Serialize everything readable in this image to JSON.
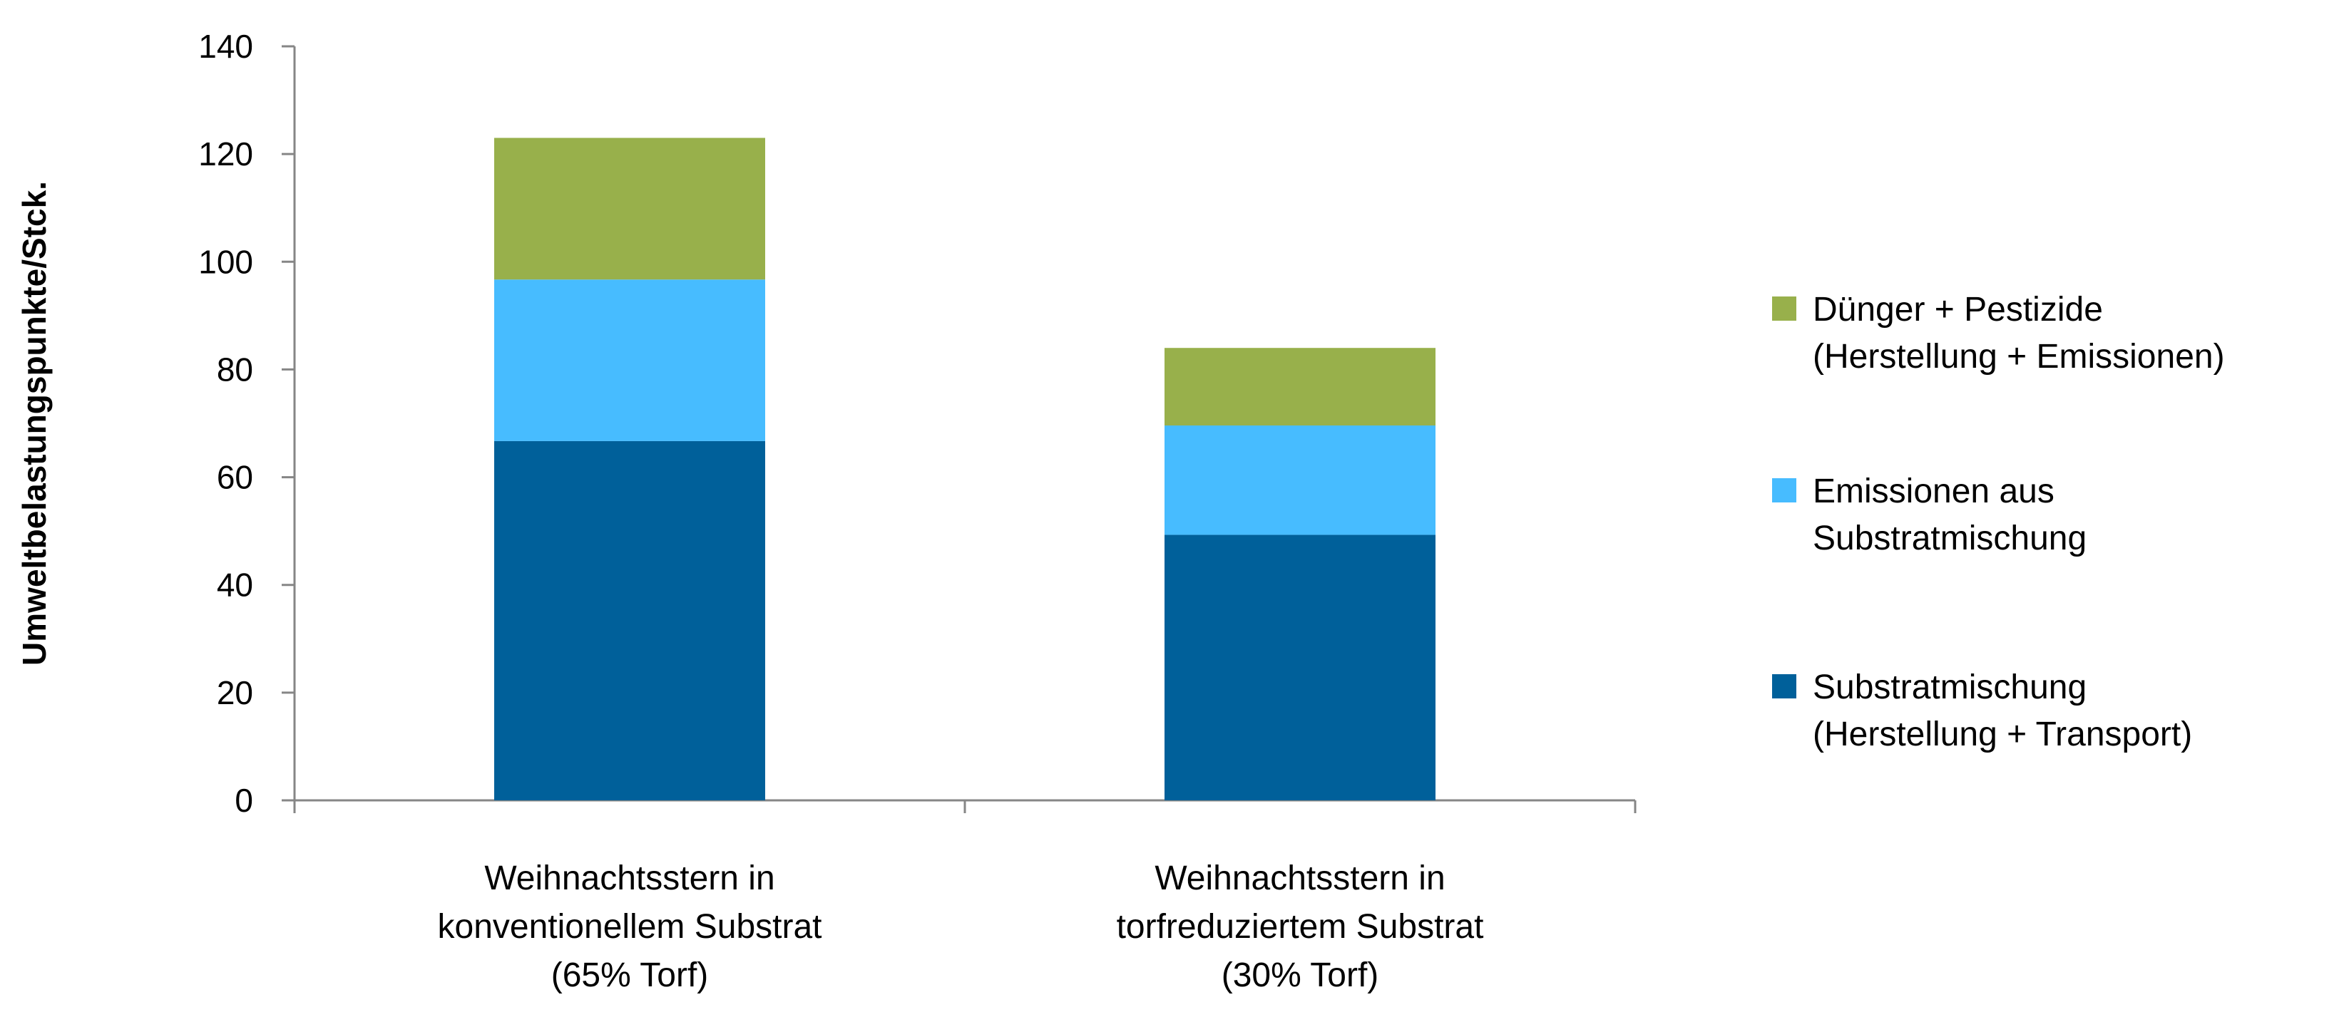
{
  "chart_data": {
    "type": "bar",
    "stacked": true,
    "title": "",
    "xlabel": "",
    "ylabel": "Umweltbelastungspunkte/Stck.",
    "ylim": [
      0,
      140
    ],
    "yticks": [
      "0",
      "20",
      "40",
      "60",
      "80",
      "100",
      "120",
      "140"
    ],
    "grid": false,
    "legend_position": "right",
    "categories": [
      [
        "Weihnachtsstern in",
        "konventionellem Substrat",
        "(65% Torf)"
      ],
      [
        "Weihnachtsstern in",
        "torfreduziertem Substrat",
        "(30% Torf)"
      ]
    ],
    "series": [
      {
        "name": "Substratmischung (Herstellung + Transport)",
        "legend_lines": [
          "Substratmischung",
          "(Herstellung + Transport)"
        ],
        "color": "#00609A",
        "values": [
          66.7,
          49.3
        ]
      },
      {
        "name": "Emissionen aus Substratmischung",
        "legend_lines": [
          "Emissionen aus",
          "Substratmischung"
        ],
        "color": "#47BCFF",
        "values": [
          30.0,
          20.3
        ]
      },
      {
        "name": "Dünger + Pestizide (Herstellung + Emissionen)",
        "legend_lines": [
          "Dünger + Pestizide",
          "(Herstellung + Emissionen)"
        ],
        "color": "#98B04B",
        "values": [
          26.3,
          14.4
        ]
      }
    ]
  }
}
